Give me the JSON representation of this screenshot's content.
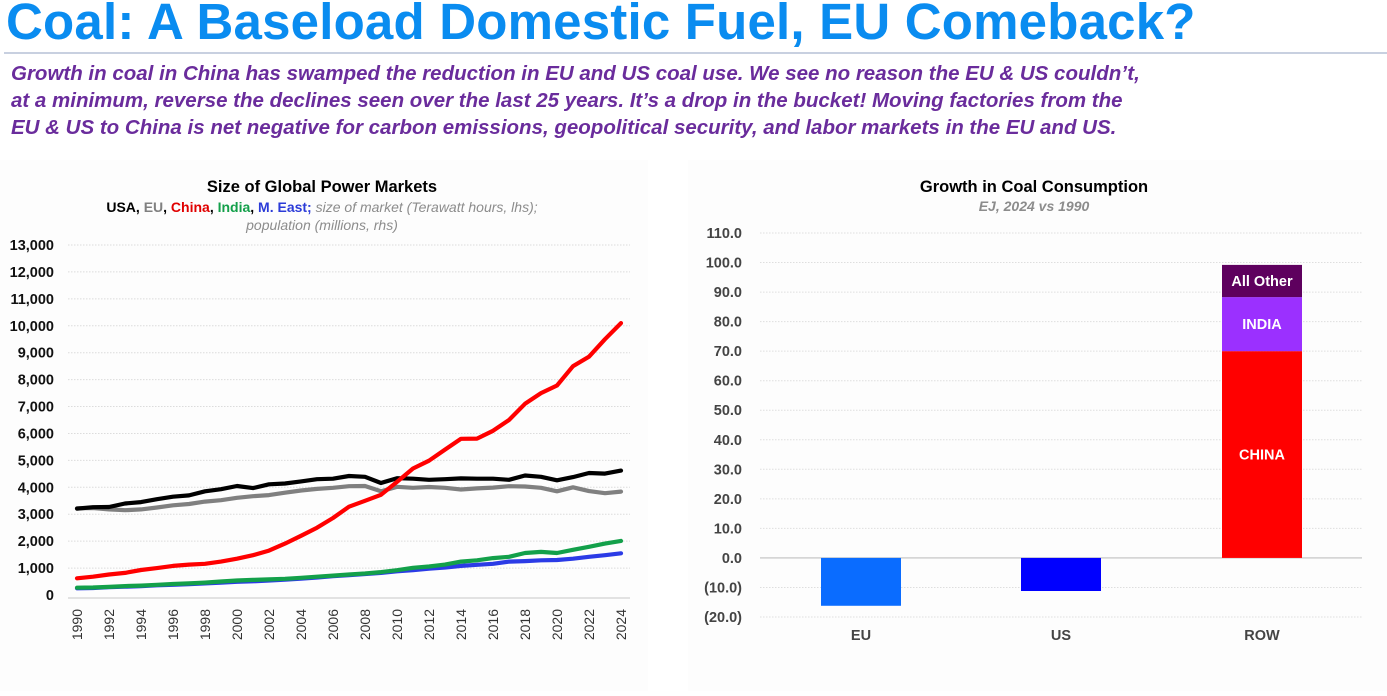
{
  "header": {
    "title": "Coal: A Baseload Domestic Fuel, EU Comeback?",
    "subtitle_lines": [
      "Growth in coal in China has swamped the reduction in EU and US coal use. We see no reason the EU & US couldn’t,",
      "at a minimum, reverse the declines seen over the last 25 years. It’s a drop in the bucket! Moving factories from the",
      "EU & US to China is net negative for carbon emissions, geopolitical security, and labor markets in the EU and US."
    ]
  },
  "chart_data": [
    {
      "type": "line",
      "title": "Size of Global Power Markets",
      "subtitle_parts": [
        {
          "text": "USA",
          "color": "#000000",
          "style": "bold"
        },
        {
          "text": ", ",
          "color": "#000000",
          "style": "bold"
        },
        {
          "text": "EU",
          "color": "#808080",
          "style": "bold"
        },
        {
          "text": ", ",
          "color": "#000000",
          "style": "bold"
        },
        {
          "text": "China",
          "color": "#e00000",
          "style": "bold"
        },
        {
          "text": ", ",
          "color": "#000000",
          "style": "bold"
        },
        {
          "text": "India",
          "color": "#13a04a",
          "style": "bold"
        },
        {
          "text": ", ",
          "color": "#000000",
          "style": "bold"
        },
        {
          "text": "M. East;",
          "color": "#2b3bd8",
          "style": "bold"
        },
        {
          "text": " size of market (Terawatt hours, lhs);",
          "color": "#8c8c8c",
          "style": "italic"
        }
      ],
      "subtitle_line2": "population (millions, rhs)",
      "xlabel": "",
      "ylabel": "",
      "ylim": [
        0,
        13000
      ],
      "yticks": [
        0,
        1000,
        2000,
        3000,
        4000,
        5000,
        6000,
        7000,
        8000,
        9000,
        10000,
        11000,
        12000,
        13000
      ],
      "ytick_labels": [
        "0",
        "1,000",
        "2,000",
        "3,000",
        "4,000",
        "5,000",
        "6,000",
        "7,000",
        "8,000",
        "9,000",
        "10,000",
        "11,000",
        "12,000",
        "13,000"
      ],
      "xtick_labels": [
        "1990",
        "1992",
        "1994",
        "1996",
        "1998",
        "2000",
        "2002",
        "2004",
        "2006",
        "2008",
        "2010",
        "2012",
        "2014",
        "2016",
        "2018",
        "2020",
        "2022",
        "2024"
      ],
      "grid": true,
      "x": [
        1990,
        1991,
        1992,
        1993,
        1994,
        1995,
        1996,
        1997,
        1998,
        1999,
        2000,
        2001,
        2002,
        2003,
        2004,
        2005,
        2006,
        2007,
        2008,
        2009,
        2010,
        2011,
        2012,
        2013,
        2014,
        2015,
        2016,
        2017,
        2018,
        2019,
        2020,
        2021,
        2022,
        2023,
        2024
      ],
      "series": [
        {
          "name": "USA",
          "color": "#000000",
          "values": [
            3210,
            3260,
            3270,
            3400,
            3450,
            3560,
            3650,
            3700,
            3850,
            3930,
            4050,
            3970,
            4110,
            4140,
            4220,
            4300,
            4320,
            4420,
            4390,
            4160,
            4340,
            4320,
            4280,
            4300,
            4330,
            4320,
            4320,
            4280,
            4440,
            4390,
            4260,
            4380,
            4530,
            4510,
            4620
          ]
        },
        {
          "name": "EU",
          "color": "#808080",
          "values": [
            3220,
            3230,
            3180,
            3150,
            3180,
            3250,
            3330,
            3380,
            3470,
            3520,
            3610,
            3670,
            3710,
            3800,
            3880,
            3940,
            3980,
            4040,
            4050,
            3850,
            4020,
            3980,
            4010,
            3980,
            3920,
            3960,
            3990,
            4040,
            4030,
            3980,
            3850,
            4000,
            3860,
            3780,
            3840
          ]
        },
        {
          "name": "China",
          "color": "#ff0000",
          "values": [
            620,
            680,
            760,
            820,
            930,
            1000,
            1080,
            1130,
            1160,
            1240,
            1350,
            1480,
            1650,
            1910,
            2200,
            2500,
            2860,
            3280,
            3500,
            3720,
            4200,
            4700,
            4990,
            5400,
            5800,
            5810,
            6100,
            6500,
            7100,
            7500,
            7780,
            8500,
            8850,
            9500,
            10100
          ]
        },
        {
          "name": "India",
          "color": "#13a04a",
          "values": [
            270,
            280,
            300,
            330,
            350,
            380,
            410,
            430,
            460,
            500,
            540,
            560,
            580,
            600,
            640,
            680,
            720,
            760,
            800,
            850,
            920,
            1010,
            1060,
            1130,
            1240,
            1290,
            1370,
            1420,
            1560,
            1600,
            1560,
            1680,
            1790,
            1910,
            2010
          ]
        },
        {
          "name": "M. East",
          "color": "#2b3be6",
          "values": [
            250,
            260,
            290,
            310,
            330,
            360,
            380,
            400,
            430,
            460,
            490,
            510,
            540,
            570,
            610,
            650,
            700,
            740,
            780,
            820,
            880,
            920,
            980,
            1020,
            1080,
            1120,
            1160,
            1240,
            1260,
            1290,
            1300,
            1350,
            1420,
            1480,
            1550
          ]
        }
      ]
    },
    {
      "type": "bar",
      "stacked": true,
      "title": "Growth in Coal Consumption",
      "subtitle": "EJ, 2024 vs 1990",
      "xlabel": "",
      "ylabel": "",
      "ylim": [
        -20,
        110
      ],
      "yticks": [
        -20,
        -10,
        0,
        10,
        20,
        30,
        40,
        50,
        60,
        70,
        80,
        90,
        100,
        110
      ],
      "ytick_labels": [
        "(20.0)",
        "(10.0)",
        "0.0",
        "10.0",
        "20.0",
        "30.0",
        "40.0",
        "50.0",
        "60.0",
        "70.0",
        "80.0",
        "90.0",
        "100.0",
        "110.0"
      ],
      "grid": true,
      "categories": [
        "EU",
        "US",
        "ROW"
      ],
      "series": [
        {
          "name": "EU",
          "color": "#0a6cff",
          "values": [
            -16.2,
            0,
            0
          ],
          "label": ""
        },
        {
          "name": "US",
          "color": "#0000ff",
          "values": [
            0,
            -11.2,
            0
          ],
          "label": ""
        },
        {
          "name": "CHINA",
          "color": "#ff0000",
          "values": [
            0,
            0,
            70.0
          ],
          "label": "CHINA"
        },
        {
          "name": "INDIA",
          "color": "#9b30ff",
          "values": [
            0,
            0,
            18.3
          ],
          "label": "INDIA"
        },
        {
          "name": "All Other",
          "color": "#5e005e",
          "values": [
            0,
            0,
            10.9
          ],
          "label": "All Other"
        }
      ]
    }
  ]
}
